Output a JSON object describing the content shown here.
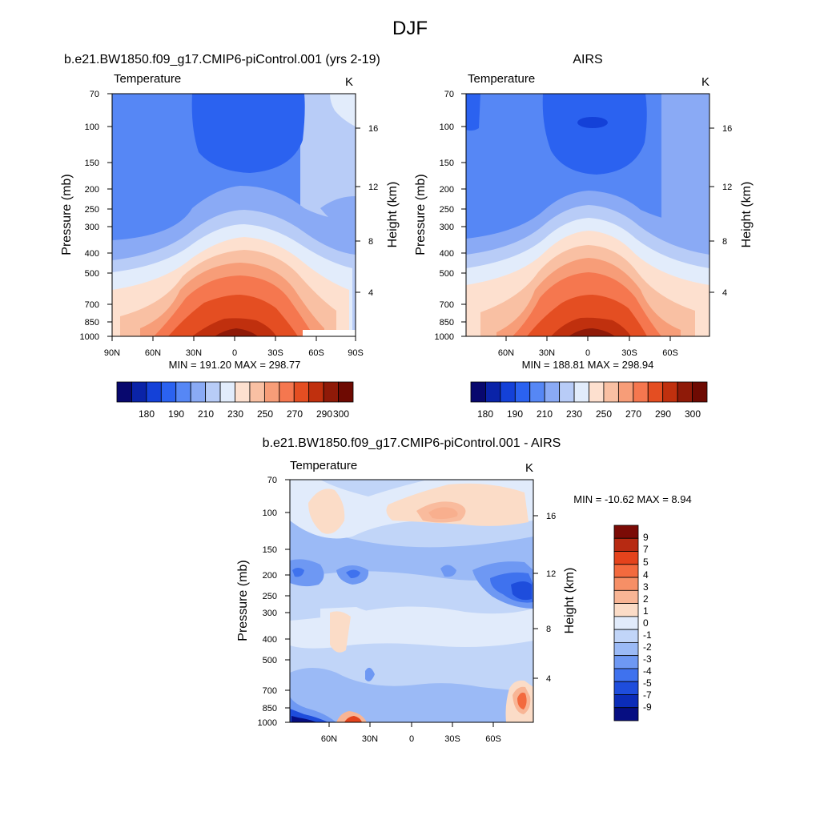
{
  "figure": {
    "title": "DJF"
  },
  "chart_data": [
    {
      "type": "heatmap",
      "title": "b.e21.BW1850.f09_g17.CMIP6-piControl.001 (yrs 2-19)",
      "variable": "Temperature",
      "units": "K",
      "ylabel": "Pressure (mb)",
      "ylabel_right": "Height (km)",
      "y_ticks": [
        "70",
        "100",
        "150",
        "200",
        "250",
        "300",
        "400",
        "500",
        "700",
        "850",
        "1000"
      ],
      "y_right_ticks": [
        "4",
        "8",
        "12",
        "16"
      ],
      "x_ticks": [
        "90N",
        "60N",
        "30N",
        "0",
        "30S",
        "60S",
        "90S"
      ],
      "stats": "MIN = 191.20  MAX = 298.77",
      "levels": [
        "180",
        "190",
        "210",
        "230",
        "250",
        "270",
        "290",
        "300"
      ],
      "ylim": [
        1000,
        70
      ]
    },
    {
      "type": "heatmap",
      "title": "AIRS",
      "variable": "Temperature",
      "units": "K",
      "ylabel": "Pressure (mb)",
      "ylabel_right": "Height (km)",
      "y_ticks": [
        "70",
        "100",
        "150",
        "200",
        "250",
        "300",
        "400",
        "500",
        "700",
        "850",
        "1000"
      ],
      "y_right_ticks": [
        "4",
        "8",
        "12",
        "16"
      ],
      "x_ticks": [
        "60N",
        "30N",
        "0",
        "30S",
        "60S"
      ],
      "stats": "MIN = 188.81  MAX = 298.94",
      "levels": [
        "180",
        "190",
        "210",
        "230",
        "250",
        "270",
        "290",
        "300"
      ],
      "ylim": [
        1000,
        70
      ]
    },
    {
      "type": "heatmap",
      "title": "b.e21.BW1850.f09_g17.CMIP6-piControl.001 - AIRS",
      "variable": "Temperature",
      "units": "K",
      "ylabel": "Pressure (mb)",
      "ylabel_right": "Height (km)",
      "y_ticks": [
        "70",
        "100",
        "150",
        "200",
        "250",
        "300",
        "400",
        "500",
        "700",
        "850",
        "1000"
      ],
      "y_right_ticks": [
        "4",
        "8",
        "12",
        "16"
      ],
      "x_ticks": [
        "60N",
        "30N",
        "0",
        "30S",
        "60S"
      ],
      "stats": "MIN = -10.62  MAX =   8.94",
      "levels": [
        "9",
        "7",
        "5",
        "4",
        "3",
        "2",
        "1",
        "0",
        "-1",
        "-2",
        "-3",
        "-4",
        "-5",
        "-7",
        "-9"
      ],
      "ylim": [
        1000,
        70
      ]
    }
  ],
  "colors": {
    "temp_scale": [
      "#08086e",
      "#0a23a8",
      "#1441d8",
      "#2b62f0",
      "#5687f5",
      "#8aaaf5",
      "#b8ccf7",
      "#e2ecfb",
      "#fde0cf",
      "#f9c0a3",
      "#f79d78",
      "#f5774f",
      "#e44e22",
      "#c0300e",
      "#8f1a08",
      "#6e0a02"
    ],
    "diff_scale": [
      "#7b0b06",
      "#b72a12",
      "#e4431c",
      "#f36a3e",
      "#f68f66",
      "#f8b595",
      "#fbdcc7",
      "#e1ebfb",
      "#c1d5f8",
      "#9bbaf6",
      "#6e98f3",
      "#3f72ee",
      "#1e4ddc",
      "#0b2cb8",
      "#060e82"
    ]
  }
}
